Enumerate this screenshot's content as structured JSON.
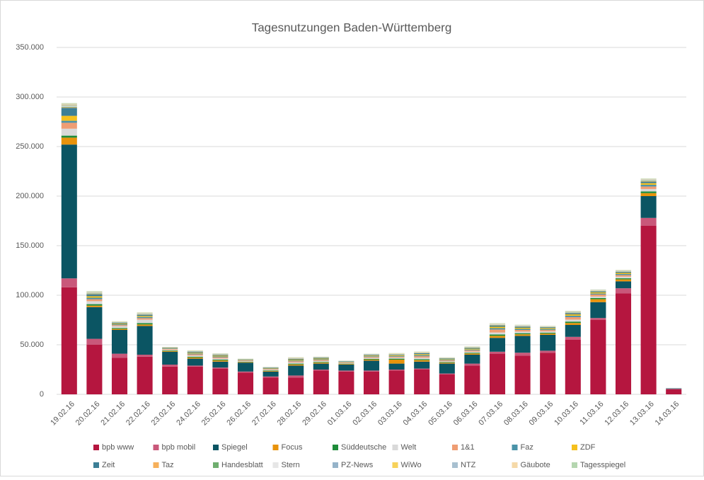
{
  "chart_data": {
    "type": "stacked_bar",
    "title": "Tagesnutzungen Baden-Württemberg",
    "categories": [
      "19.02.16",
      "20.02.16",
      "21.02.16",
      "22.02.16",
      "23.02.16",
      "24.02.16",
      "25.02.16",
      "26.02.16",
      "27.02.16",
      "28.02.16",
      "29.02.16",
      "01.03.16",
      "02.03.16",
      "03.03.16",
      "04.03.16",
      "05.03.16",
      "06.03.16",
      "07.03.16",
      "08.03.16",
      "09.03.16",
      "10.03.16",
      "11.03.16",
      "12.03.16",
      "13.03.16",
      "14.03.16"
    ],
    "series": [
      {
        "name": "bpb www",
        "color": "#b5163f",
        "values": [
          108000,
          50000,
          37000,
          38000,
          28000,
          28000,
          26000,
          22000,
          17000,
          17000,
          24000,
          23000,
          23000,
          24000,
          25000,
          20000,
          29000,
          41000,
          39000,
          42000,
          55000,
          75000,
          102000,
          170000,
          5000
        ]
      },
      {
        "name": "bpb mobil",
        "color": "#c9587a",
        "values": [
          9000,
          6000,
          4000,
          2000,
          2000,
          1000,
          1000,
          1000,
          1000,
          2000,
          1000,
          1000,
          1000,
          1000,
          1000,
          1000,
          2000,
          2000,
          3000,
          2000,
          3000,
          2000,
          5000,
          8000,
          500
        ]
      },
      {
        "name": "Spiegel",
        "color": "#0b5563",
        "values": [
          135000,
          32000,
          24000,
          29000,
          13000,
          7000,
          6000,
          9000,
          5000,
          10000,
          6000,
          6000,
          10000,
          6000,
          7000,
          10000,
          9000,
          14000,
          17000,
          16000,
          12000,
          16000,
          7000,
          22000,
          500
        ]
      },
      {
        "name": "Focus",
        "color": "#e8930c",
        "values": [
          7000,
          1500,
          1000,
          1500,
          800,
          1200,
          1200,
          600,
          700,
          1200,
          1000,
          600,
          1000,
          4000,
          1500,
          900,
          1200,
          2000,
          1600,
          1300,
          2000,
          3000,
          2000,
          3000,
          0
        ]
      },
      {
        "name": "Süddeutsche",
        "color": "#1e8c3a",
        "values": [
          2000,
          1500,
          900,
          1400,
          500,
          800,
          800,
          400,
          500,
          800,
          700,
          400,
          700,
          1000,
          1000,
          600,
          800,
          1400,
          1100,
          900,
          1400,
          1200,
          1100,
          1700,
          0
        ]
      },
      {
        "name": "Welt",
        "color": "#d9d9d9",
        "values": [
          7000,
          3000,
          2000,
          3500,
          800,
          1200,
          1200,
          600,
          700,
          1200,
          1000,
          600,
          1000,
          1000,
          1500,
          900,
          1200,
          2000,
          1600,
          1300,
          2000,
          1500,
          1600,
          2500,
          500
        ]
      },
      {
        "name": "1&1",
        "color": "#ef9d73",
        "values": [
          6000,
          2000,
          1000,
          1500,
          700,
          1200,
          1200,
          600,
          700,
          1200,
          1000,
          600,
          1000,
          1000,
          1500,
          900,
          1200,
          3000,
          1700,
          1400,
          2500,
          2000,
          1600,
          2500,
          0
        ]
      },
      {
        "name": "Faz",
        "color": "#4a93a8",
        "values": [
          2000,
          1500,
          800,
          1200,
          500,
          800,
          800,
          400,
          500,
          800,
          700,
          400,
          700,
          700,
          1000,
          600,
          800,
          1400,
          1100,
          900,
          1400,
          1000,
          1100,
          1700,
          0
        ]
      },
      {
        "name": "ZDF",
        "color": "#f5c01d",
        "values": [
          5000,
          1500,
          700,
          1000,
          400,
          800,
          800,
          300,
          400,
          800,
          700,
          300,
          700,
          800,
          1000,
          600,
          800,
          1400,
          1100,
          900,
          1400,
          1200,
          1100,
          1700,
          0
        ]
      },
      {
        "name": "Zeit",
        "color": "#3c7f96",
        "values": [
          8000,
          2000,
          700,
          1200,
          400,
          800,
          800,
          300,
          400,
          800,
          700,
          300,
          700,
          500,
          1000,
          600,
          800,
          1200,
          1000,
          800,
          1200,
          900,
          1000,
          1500,
          0
        ]
      },
      {
        "name": "Taz",
        "color": "#f6b05b",
        "values": [
          600,
          400,
          200,
          300,
          100,
          200,
          200,
          100,
          100,
          200,
          150,
          100,
          150,
          200,
          200,
          150,
          200,
          300,
          250,
          200,
          300,
          250,
          250,
          400,
          0
        ]
      },
      {
        "name": "Handesblatt",
        "color": "#6fae6f",
        "values": [
          600,
          400,
          200,
          300,
          100,
          200,
          200,
          100,
          100,
          200,
          150,
          100,
          150,
          200,
          200,
          150,
          200,
          300,
          250,
          200,
          300,
          250,
          250,
          400,
          0
        ]
      },
      {
        "name": "Stern",
        "color": "#e6e6e6",
        "values": [
          600,
          400,
          200,
          300,
          100,
          200,
          200,
          100,
          100,
          200,
          150,
          100,
          150,
          200,
          200,
          150,
          200,
          300,
          250,
          200,
          300,
          250,
          250,
          400,
          0
        ]
      },
      {
        "name": "PZ-News",
        "color": "#95b3c9",
        "values": [
          600,
          400,
          200,
          300,
          100,
          200,
          200,
          100,
          100,
          200,
          150,
          100,
          150,
          200,
          200,
          150,
          200,
          300,
          250,
          200,
          300,
          250,
          250,
          400,
          0
        ]
      },
      {
        "name": "WiWo",
        "color": "#f7d25a",
        "values": [
          600,
          400,
          200,
          300,
          100,
          200,
          200,
          100,
          100,
          200,
          150,
          100,
          150,
          200,
          200,
          150,
          200,
          300,
          250,
          200,
          300,
          250,
          250,
          400,
          0
        ]
      },
      {
        "name": "NTZ",
        "color": "#a8c0d0",
        "values": [
          600,
          400,
          200,
          300,
          100,
          200,
          200,
          100,
          100,
          200,
          150,
          100,
          150,
          200,
          200,
          150,
          200,
          300,
          250,
          200,
          300,
          250,
          250,
          400,
          0
        ]
      },
      {
        "name": "Gäubote",
        "color": "#f5d9a8",
        "values": [
          600,
          400,
          200,
          300,
          100,
          200,
          200,
          100,
          100,
          200,
          150,
          100,
          150,
          200,
          200,
          150,
          200,
          300,
          250,
          200,
          300,
          250,
          250,
          400,
          0
        ]
      },
      {
        "name": "Tagesspiegel",
        "color": "#b5d6b0",
        "values": [
          600,
          400,
          200,
          300,
          100,
          200,
          200,
          100,
          100,
          200,
          150,
          100,
          150,
          200,
          200,
          150,
          200,
          300,
          250,
          200,
          300,
          250,
          250,
          400,
          0
        ]
      }
    ],
    "ylim": [
      0,
      350000
    ],
    "yticks": [
      {
        "value": 0,
        "label": "0"
      },
      {
        "value": 50000,
        "label": "50.000"
      },
      {
        "value": 100000,
        "label": "100.000"
      },
      {
        "value": 150000,
        "label": "150.000"
      },
      {
        "value": 200000,
        "label": "200.000"
      },
      {
        "value": 250000,
        "label": "250.000"
      },
      {
        "value": 300000,
        "label": "300.000"
      },
      {
        "value": 350000,
        "label": "350.000"
      }
    ],
    "grid": true,
    "legend": "bottom"
  }
}
